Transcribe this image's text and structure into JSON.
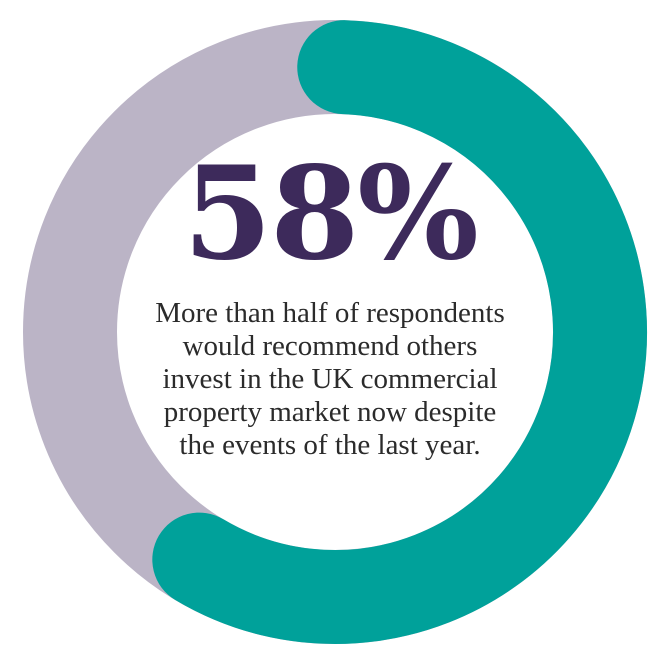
{
  "chart_data": {
    "type": "pie",
    "style": "donut",
    "values": [
      58,
      42
    ],
    "colors": [
      "#00a19a",
      "#bbb4c6"
    ],
    "center_label": "58%",
    "center_text_lines": [
      "More than half of respondents",
      "would recommend others",
      "invest in the UK commercial",
      "property market now despite",
      "the events of the last year."
    ],
    "text_color": "#3d2a5b"
  }
}
